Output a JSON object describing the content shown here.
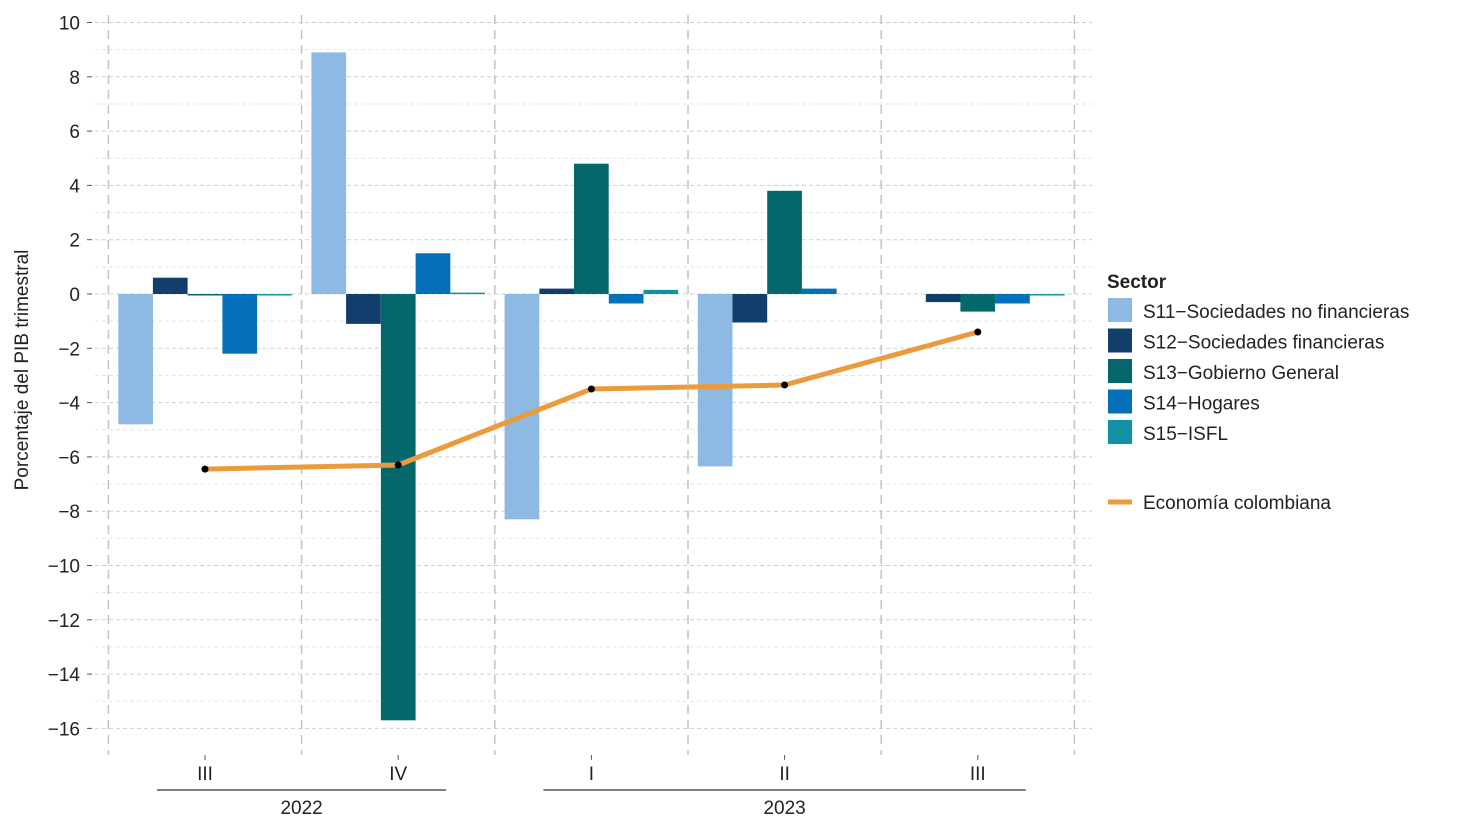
{
  "chart_data": {
    "type": "bar",
    "ylabel": "Porcentaje del PIB trimestral",
    "ylim": [
      -16.5,
      10
    ],
    "yticks": [
      10,
      8,
      6,
      4,
      2,
      0,
      -2,
      -4,
      -6,
      -8,
      -10,
      -12,
      -14,
      -16
    ],
    "ytick_labels": [
      "10",
      "8",
      "6",
      "4",
      "2",
      "0",
      "−2",
      "−4",
      "−6",
      "−8",
      "−10",
      "−12",
      "−14",
      "−16"
    ],
    "categories": [
      "III",
      "IV",
      "I",
      "II",
      "III"
    ],
    "year_groups": [
      {
        "label": "2022",
        "from": 0,
        "to": 1
      },
      {
        "label": "2023",
        "from": 2,
        "to": 4
      }
    ],
    "grid": true,
    "legend": {
      "title": "Sector",
      "placement": "right"
    },
    "series": [
      {
        "name": "S11−Sociedades no financieras",
        "color": "#8db9e2",
        "values": [
          -4.8,
          8.9,
          -8.3,
          -6.35,
          0.0
        ]
      },
      {
        "name": "S12−Sociedades financieras",
        "color": "#123e6b",
        "values": [
          0.6,
          -1.1,
          0.2,
          -1.05,
          -0.3
        ]
      },
      {
        "name": "S13−Gobierno General",
        "color": "#03676b",
        "values": [
          -0.05,
          -15.7,
          4.8,
          3.8,
          -0.65
        ]
      },
      {
        "name": "S14−Hogares",
        "color": "#0570b9",
        "values": [
          -2.2,
          1.5,
          -0.35,
          0.2,
          -0.35
        ]
      },
      {
        "name": "S15−ISFL",
        "color": "#0f93a3",
        "values": [
          -0.05,
          0.05,
          0.15,
          0.0,
          -0.05
        ]
      }
    ],
    "line_series": {
      "name": "Economía colombiana",
      "color": "#eb9b3b",
      "values": [
        -6.45,
        -6.3,
        -3.5,
        -3.35,
        -1.4
      ]
    }
  }
}
